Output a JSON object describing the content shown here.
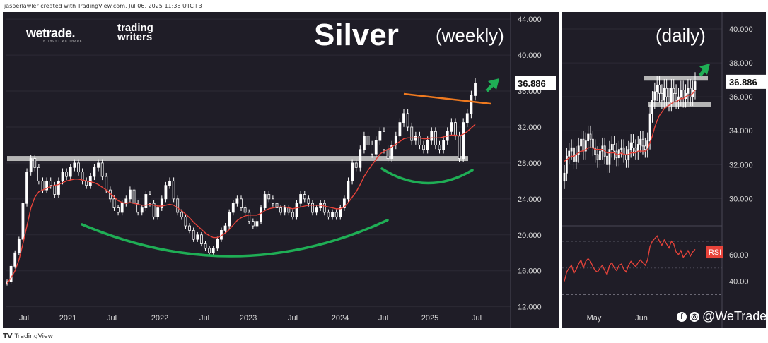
{
  "header": {
    "attribution": "jasperlawler created with TradingView.com, Jul 06, 2025 11:38 UTC+3"
  },
  "footer": {
    "logo": "TV",
    "brand": "TradingView"
  },
  "branding": {
    "wetrade": "wetrade.",
    "wetrade_sub": "IN TRUST WE TRADE",
    "trading_writers_1": "trading",
    "trading_writers_2": "writers",
    "social_handle": "@WeTrade"
  },
  "colors": {
    "background": "#1f1d27",
    "candle": "#ffffff",
    "ma": "#e8433a",
    "support": "#b5b5b5",
    "trendline": "#f07a1f",
    "curve": "#1fae55",
    "arrow": "#1fae55",
    "price_tag_bg": "#ffffff",
    "rsi_label": "#e8433a"
  },
  "chart_data": [
    {
      "type": "candlestick",
      "title": "Silver",
      "subtitle": "(weekly)",
      "price_label": "36.886",
      "yticks": [
        "44.000",
        "40.000",
        "36.000",
        "32.000",
        "28.000",
        "24.000",
        "20.000",
        "16.000",
        "12.000"
      ],
      "xticks": [
        "Jul",
        "2021",
        "Jul",
        "2022",
        "Jul",
        "2023",
        "Jul",
        "2024",
        "Jul",
        "2025",
        "Jul"
      ],
      "ylim": [
        11.5,
        44.8
      ],
      "support_level": 28.5,
      "close_series": [
        14.8,
        16.5,
        18.0,
        19.5,
        23.5,
        27.0,
        28.5,
        27.5,
        26.0,
        25.0,
        26.0,
        25.5,
        24.5,
        26.0,
        27.0,
        26.5,
        27.5,
        28.0,
        27.0,
        26.0,
        25.5,
        26.5,
        27.5,
        28.0,
        26.5,
        25.0,
        24.0,
        23.0,
        22.5,
        23.5,
        24.0,
        25.0,
        23.5,
        22.5,
        23.0,
        24.5,
        23.5,
        22.0,
        23.0,
        24.0,
        25.5,
        26.0,
        24.0,
        22.5,
        22.0,
        21.0,
        20.5,
        19.5,
        20.0,
        19.0,
        18.5,
        18.0,
        18.5,
        19.5,
        20.5,
        21.0,
        22.5,
        23.5,
        24.0,
        23.0,
        22.5,
        21.5,
        21.0,
        21.5,
        23.0,
        24.5,
        24.0,
        23.5,
        23.0,
        22.5,
        23.0,
        22.5,
        22.0,
        23.5,
        24.5,
        24.0,
        23.5,
        22.5,
        23.0,
        23.5,
        22.5,
        22.0,
        22.5,
        22.0,
        23.0,
        24.0,
        26.0,
        28.0,
        27.5,
        29.5,
        31.0,
        30.0,
        29.0,
        30.5,
        31.5,
        29.5,
        28.5,
        30.0,
        31.0,
        32.5,
        33.5,
        32.0,
        30.5,
        31.0,
        30.0,
        29.5,
        30.5,
        31.5,
        30.0,
        29.5,
        30.5,
        31.5,
        32.5,
        31.0,
        28.5,
        32.5,
        33.5,
        35.5,
        36.9
      ],
      "ma_series": [
        14.6,
        15.2,
        16.0,
        17.2,
        19.0,
        21.0,
        23.0,
        24.2,
        24.8,
        25.0,
        25.2,
        25.4,
        25.5,
        25.6,
        25.8,
        26.0,
        26.1,
        26.2,
        26.2,
        26.1,
        26.0,
        25.9,
        25.8,
        25.6,
        25.3,
        25.0,
        24.6,
        24.2,
        23.8,
        23.6,
        23.5,
        23.6,
        23.5,
        23.4,
        23.3,
        23.3,
        23.4,
        23.3,
        23.2,
        23.2,
        23.3,
        23.4,
        23.3,
        23.0,
        22.7,
        22.3,
        21.9,
        21.4,
        21.0,
        20.6,
        20.2,
        19.9,
        19.7,
        19.7,
        19.9,
        20.2,
        20.6,
        21.1,
        21.6,
        21.9,
        22.1,
        22.2,
        22.2,
        22.2,
        22.4,
        22.7,
        22.9,
        23.0,
        23.1,
        23.1,
        23.1,
        23.0,
        22.9,
        23.0,
        23.1,
        23.2,
        23.3,
        23.3,
        23.3,
        23.3,
        23.2,
        23.1,
        23.0,
        22.9,
        22.9,
        23.1,
        23.6,
        24.2,
        24.8,
        25.6,
        26.5,
        27.2,
        27.8,
        28.4,
        29.0,
        29.3,
        29.5,
        29.8,
        30.1,
        30.4,
        30.7,
        30.8,
        30.8,
        30.8,
        30.8,
        30.7,
        30.7,
        30.8,
        30.8,
        30.8,
        30.9,
        31.0,
        31.1,
        31.1,
        31.0,
        31.2,
        31.5,
        31.9,
        32.3
      ]
    },
    {
      "type": "candlestick",
      "subtitle": "(daily)",
      "price_label": "36.886",
      "yticks": [
        "40.000",
        "38.000",
        "36.000",
        "34.000",
        "32.000",
        "30.000"
      ],
      "rsi_ticks": [
        "60.00",
        "40.00"
      ],
      "xticks": [
        "May",
        "Jun"
      ],
      "ylim": [
        28.6,
        41.0
      ],
      "rsi_label": "RSI",
      "close_series": [
        31.5,
        32.5,
        32.8,
        33.0,
        32.2,
        32.6,
        33.1,
        33.5,
        32.8,
        33.4,
        33.8,
        33.5,
        33.0,
        32.6,
        32.3,
        32.8,
        33.1,
        32.5,
        32.0,
        32.9,
        33.2,
        32.8,
        32.4,
        32.9,
        33.0,
        32.6,
        32.3,
        32.9,
        33.3,
        33.0,
        32.8,
        33.2,
        33.5,
        33.1,
        32.9,
        33.4,
        35.0,
        35.8,
        36.3,
        36.7,
        36.2,
        35.8,
        36.5,
        36.0,
        35.7,
        36.5,
        36.2,
        35.8,
        36.0,
        36.4,
        35.9,
        36.2,
        36.5,
        36.0,
        36.4,
        36.9
      ],
      "ma_series": [
        32.2,
        32.3,
        32.4,
        32.5,
        32.5,
        32.6,
        32.7,
        32.8,
        32.8,
        32.9,
        33.0,
        33.0,
        33.0,
        32.9,
        32.9,
        32.9,
        32.9,
        32.8,
        32.7,
        32.7,
        32.7,
        32.7,
        32.6,
        32.6,
        32.7,
        32.6,
        32.6,
        32.6,
        32.7,
        32.7,
        32.7,
        32.8,
        32.8,
        32.8,
        32.8,
        32.9,
        33.3,
        33.7,
        34.2,
        34.6,
        34.9,
        35.1,
        35.3,
        35.4,
        35.5,
        35.6,
        35.7,
        35.7,
        35.8,
        35.9,
        35.9,
        36.0,
        36.1,
        36.1,
        36.2,
        36.4
      ],
      "rsi_series": [
        40,
        47,
        50,
        52,
        46,
        49,
        53,
        56,
        50,
        55,
        57,
        55,
        51,
        48,
        47,
        50,
        52,
        48,
        45,
        52,
        54,
        50,
        48,
        52,
        53,
        49,
        47,
        52,
        55,
        53,
        51,
        54,
        56,
        54,
        52,
        56,
        66,
        70,
        72,
        74,
        70,
        67,
        71,
        68,
        65,
        70,
        68,
        62,
        60,
        63,
        58,
        60,
        63,
        59,
        62,
        64
      ]
    }
  ]
}
